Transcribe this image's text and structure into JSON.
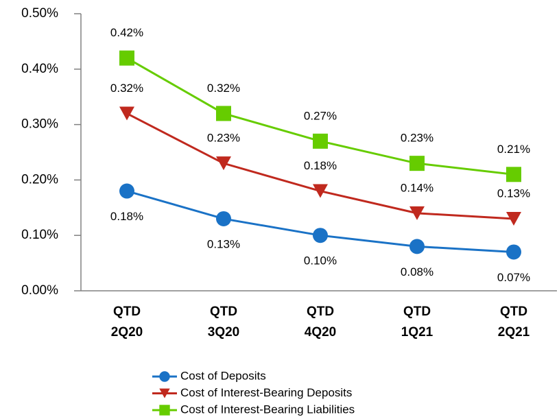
{
  "chart_data": {
    "type": "line",
    "categories": [
      "QTD\n2Q20",
      "QTD\n3Q20",
      "QTD\n4Q20",
      "QTD\n1Q21",
      "QTD\n2Q21"
    ],
    "series": [
      {
        "name": "Cost of Deposits",
        "color": "#1a72c6",
        "values": [
          0.18,
          0.13,
          0.1,
          0.08,
          0.07
        ],
        "value_labels": [
          "0.18%",
          "0.13%",
          "0.10%",
          "0.08%",
          "0.07%"
        ]
      },
      {
        "name": "Cost of Interest-Bearing Deposits",
        "color": "#c0291e",
        "values": [
          0.32,
          0.23,
          0.18,
          0.14,
          0.13
        ],
        "value_labels": [
          "0.32%",
          "0.23%",
          "0.18%",
          "0.14%",
          "0.13%"
        ]
      },
      {
        "name": "Cost of Interest-Bearing Liabilities",
        "color": "#66cc00",
        "values": [
          0.42,
          0.32,
          0.27,
          0.23,
          0.21
        ],
        "value_labels": [
          "0.42%",
          "0.32%",
          "0.27%",
          "0.23%",
          "0.21%"
        ]
      }
    ],
    "ylim": [
      0,
      0.5
    ],
    "yticks": [
      {
        "value": 0,
        "label": "0.00%"
      },
      {
        "value": 0.1,
        "label": "0.10%"
      },
      {
        "value": 0.2,
        "label": "0.20%"
      },
      {
        "value": 0.3,
        "label": "0.30%"
      },
      {
        "value": 0.4,
        "label": "0.40%"
      },
      {
        "value": 0.5,
        "label": "0.50%"
      }
    ]
  }
}
